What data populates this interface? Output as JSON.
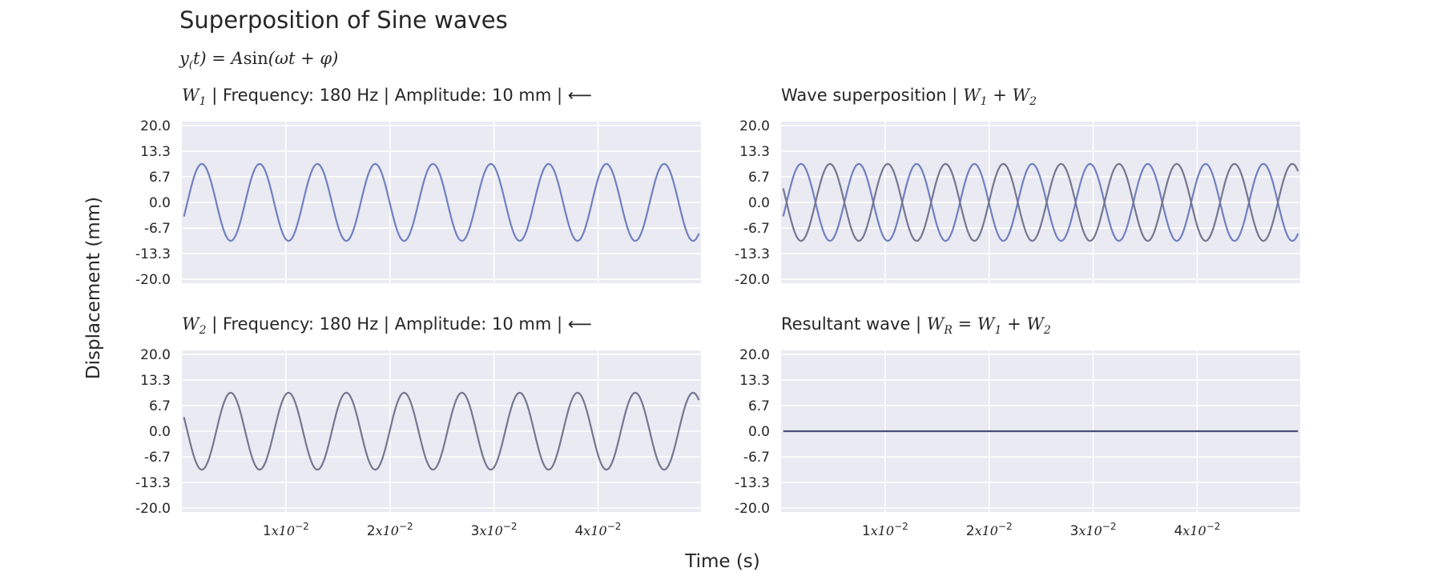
{
  "chart_data": {
    "type": "line",
    "title": "Superposition of Sine waves",
    "subtitle": "y(t) = Asin(ωt + φ)",
    "xlabel": "Time (s)",
    "ylabel": "Displacement (mm)",
    "xlim": [
      0,
      0.0499
    ],
    "x_ticks": [
      {
        "value": 0.01,
        "mantissa": "1",
        "exp": "−2"
      },
      {
        "value": 0.02,
        "mantissa": "2",
        "exp": "−2"
      },
      {
        "value": 0.03,
        "mantissa": "3",
        "exp": "−2"
      },
      {
        "value": 0.04,
        "mantissa": "4",
        "exp": "−2"
      }
    ],
    "ylim": [
      -21,
      21
    ],
    "y_ticks": [
      20.0,
      13.3,
      6.7,
      0.0,
      -6.7,
      -13.3,
      -20.0
    ],
    "y_tick_labels": [
      "20.0",
      "13.3",
      "6.7",
      "0.0",
      "-6.7",
      "-13.3",
      "-20.0"
    ],
    "grid": true,
    "colors": {
      "w1": "#7080c0",
      "w2": "#747790",
      "resultant": "#4c4f7a",
      "panel_bg": "#eaeaf2"
    },
    "panels": [
      {
        "id": "w1",
        "title_pre": "",
        "title_math": "W",
        "title_sub": "1",
        "title_post": " | Frequency: 180 Hz | Amplitude: 10 mm |  ⟵",
        "series": [
          {
            "key": "w1",
            "frequency_hz": 180,
            "amplitude_mm": 10,
            "phase_rad": -0.6
          }
        ]
      },
      {
        "id": "sum",
        "title_pre": "Wave superposition | ",
        "title_math": "W",
        "title_sub": "1",
        "title_post": " + W",
        "title_sub2": "2",
        "series": [
          {
            "key": "w1",
            "frequency_hz": 180,
            "amplitude_mm": 10,
            "phase_rad": -0.6
          },
          {
            "key": "w2",
            "frequency_hz": 180,
            "amplitude_mm": 10,
            "phase_rad": 2.5416
          }
        ]
      },
      {
        "id": "w2",
        "title_pre": "",
        "title_math": "W",
        "title_sub": "2",
        "title_post": " | Frequency: 180 Hz | Amplitude: 10 mm |  ⟵",
        "series": [
          {
            "key": "w2",
            "frequency_hz": 180,
            "amplitude_mm": 10,
            "phase_rad": 2.5416
          }
        ]
      },
      {
        "id": "res",
        "title_pre": "Resultant wave | ",
        "title_math": "W",
        "title_sub": "R",
        "title_post": " = W",
        "title_sub2": "1",
        "title_post2": " + W",
        "title_sub3": "2",
        "series": [
          {
            "key": "resultant",
            "constant": 0
          }
        ]
      }
    ]
  }
}
